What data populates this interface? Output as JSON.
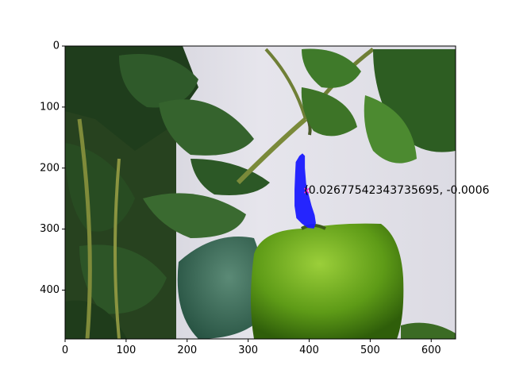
{
  "chart_data": {
    "type": "image",
    "title": "",
    "xlabel": "",
    "ylabel": "",
    "xlim": [
      0,
      640
    ],
    "ylim": [
      480,
      0
    ],
    "x_ticks": [
      0,
      100,
      200,
      300,
      400,
      500,
      600
    ],
    "y_ticks": [
      0,
      100,
      200,
      300,
      400
    ],
    "x_tick_labels": [
      "0",
      "100",
      "200",
      "300",
      "400",
      "500",
      "600"
    ],
    "y_tick_labels": [
      "0",
      "100",
      "200",
      "300",
      "400"
    ],
    "image_content": "green leafy plant with a green bell pepper hanging from a stem; segmentation mask overlaid on the stem",
    "mask": {
      "color": "#1a1aff",
      "outline": [
        [
          384,
          180
        ],
        [
          389,
          176
        ],
        [
          393,
          180
        ],
        [
          393,
          200
        ],
        [
          395,
          225
        ],
        [
          399,
          243
        ],
        [
          404,
          262
        ],
        [
          409,
          277
        ],
        [
          411,
          290
        ],
        [
          408,
          299
        ],
        [
          398,
          298
        ],
        [
          388,
          291
        ],
        [
          379,
          282
        ],
        [
          376,
          262
        ],
        [
          376,
          235
        ],
        [
          377,
          210
        ],
        [
          378,
          190
        ]
      ]
    },
    "marker": {
      "x": 396,
      "y": 237,
      "symbol": "x",
      "color": "#ff33cc"
    },
    "annotation": {
      "x": 392,
      "y": 237,
      "text": "(0.02677542343735695, -0.0006"
    }
  }
}
